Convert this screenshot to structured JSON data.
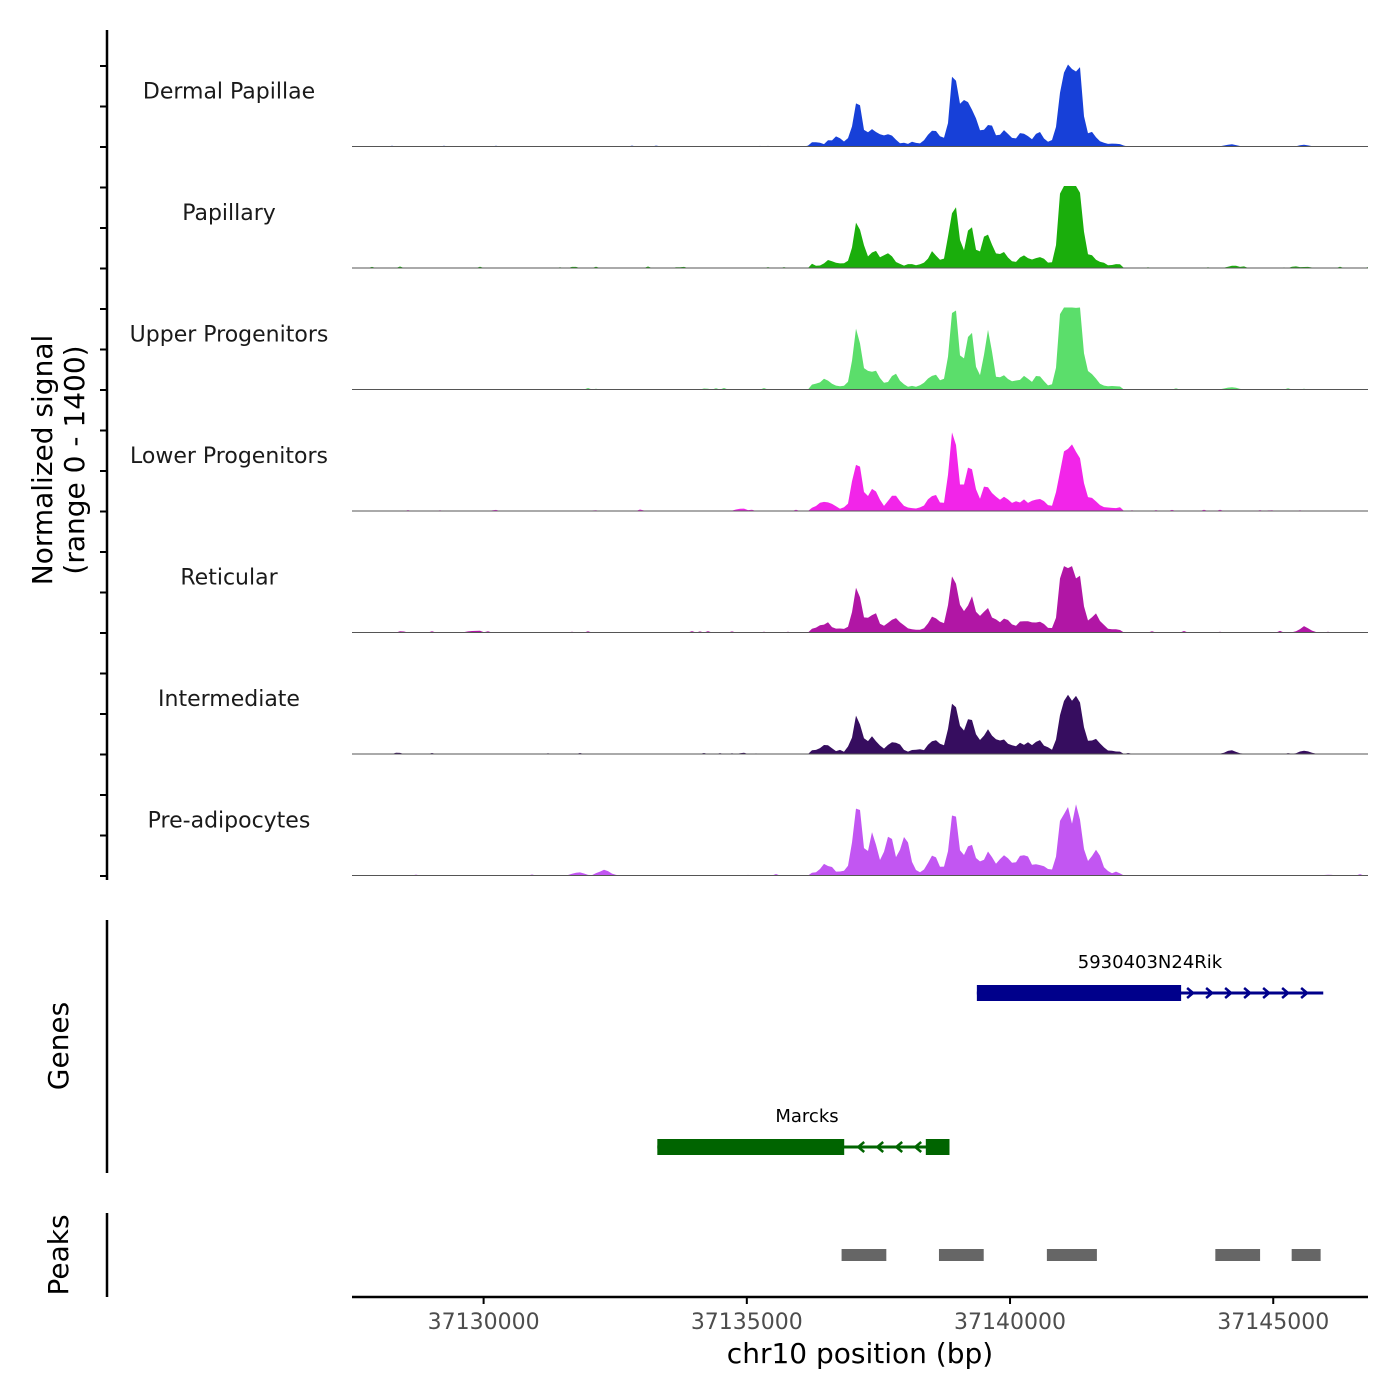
{
  "chart_data": {
    "type": "area",
    "title": "",
    "ylabel_line1": "Normalized signal",
    "ylabel_line2": "(range 0 - 1400)",
    "ylim": [
      0,
      1400
    ],
    "xlabel": "chr10 position (bp)",
    "xlim": [
      37127500,
      37146800
    ],
    "xticks": [
      37130000,
      37135000,
      37140000,
      37145000
    ],
    "xtick_labels": [
      "37130000",
      "37135000",
      "37140000",
      "37145000"
    ],
    "tracks": [
      {
        "name": "Dermal Papillae",
        "color": "#1740D8",
        "peaks": [
          [
            37137100,
            800
          ],
          [
            37137400,
            260
          ],
          [
            37137700,
            150
          ],
          [
            37138550,
            220
          ],
          [
            37138930,
            1060
          ],
          [
            37139100,
            500
          ],
          [
            37139280,
            420
          ],
          [
            37139600,
            300
          ],
          [
            37139900,
            200
          ],
          [
            37140250,
            160
          ],
          [
            37140550,
            170
          ],
          [
            37141000,
            1200
          ],
          [
            37141300,
            1230
          ],
          [
            37141150,
            900
          ],
          [
            37141550,
            160
          ],
          [
            37136700,
            90
          ],
          [
            37144200,
            40
          ],
          [
            37145600,
            20
          ]
        ]
      },
      {
        "name": "Papillary",
        "color": "#1AAE0C",
        "peaks": [
          [
            37137100,
            840
          ],
          [
            37137400,
            250
          ],
          [
            37137700,
            170
          ],
          [
            37138550,
            210
          ],
          [
            37138930,
            1070
          ],
          [
            37139240,
            660
          ],
          [
            37139580,
            560
          ],
          [
            37139900,
            190
          ],
          [
            37140250,
            150
          ],
          [
            37140550,
            160
          ],
          [
            37141000,
            1270
          ],
          [
            37141300,
            1250
          ],
          [
            37141150,
            980
          ],
          [
            37141550,
            140
          ],
          [
            37136600,
            100
          ],
          [
            37144250,
            40
          ],
          [
            37145600,
            20
          ]
        ]
      },
      {
        "name": "Upper Progenitors",
        "color": "#5BDE6B",
        "peaks": [
          [
            37137100,
            1020
          ],
          [
            37137400,
            300
          ],
          [
            37137800,
            200
          ],
          [
            37138550,
            230
          ],
          [
            37138930,
            1330
          ],
          [
            37139230,
            1050
          ],
          [
            37139580,
            860
          ],
          [
            37139900,
            180
          ],
          [
            37140250,
            150
          ],
          [
            37140550,
            160
          ],
          [
            37141000,
            1330
          ],
          [
            37141300,
            1320
          ],
          [
            37141150,
            1050
          ],
          [
            37141550,
            160
          ],
          [
            37136500,
            120
          ],
          [
            37144200,
            40
          ]
        ]
      },
      {
        "name": "Lower Progenitors",
        "color": "#F225E9",
        "peaks": [
          [
            37137100,
            900
          ],
          [
            37137400,
            280
          ],
          [
            37137800,
            220
          ],
          [
            37138550,
            240
          ],
          [
            37138930,
            1230
          ],
          [
            37139240,
            820
          ],
          [
            37139580,
            410
          ],
          [
            37139900,
            190
          ],
          [
            37140250,
            150
          ],
          [
            37140550,
            170
          ],
          [
            37141000,
            850
          ],
          [
            37141300,
            820
          ],
          [
            37141150,
            690
          ],
          [
            37141550,
            150
          ],
          [
            37136500,
            110
          ],
          [
            37134900,
            40
          ]
        ]
      },
      {
        "name": "Reticular",
        "color": "#B116A5",
        "peaks": [
          [
            37137100,
            660
          ],
          [
            37137400,
            260
          ],
          [
            37137800,
            200
          ],
          [
            37138550,
            190
          ],
          [
            37138930,
            900
          ],
          [
            37139240,
            520
          ],
          [
            37139580,
            330
          ],
          [
            37139900,
            180
          ],
          [
            37140250,
            140
          ],
          [
            37140550,
            160
          ],
          [
            37141000,
            900
          ],
          [
            37141300,
            820
          ],
          [
            37141150,
            700
          ],
          [
            37141620,
            250
          ],
          [
            37136500,
            110
          ],
          [
            37145600,
            80
          ],
          [
            37129800,
            30
          ]
        ]
      },
      {
        "name": "Intermediate",
        "color": "#360D5F",
        "peaks": [
          [
            37137100,
            620
          ],
          [
            37137400,
            220
          ],
          [
            37137800,
            170
          ],
          [
            37138550,
            180
          ],
          [
            37138930,
            890
          ],
          [
            37139240,
            540
          ],
          [
            37139580,
            380
          ],
          [
            37139900,
            190
          ],
          [
            37140250,
            140
          ],
          [
            37140550,
            160
          ],
          [
            37141000,
            820
          ],
          [
            37141300,
            960
          ],
          [
            37141150,
            700
          ],
          [
            37141620,
            230
          ],
          [
            37136500,
            90
          ],
          [
            37144200,
            60
          ],
          [
            37145600,
            60
          ]
        ]
      },
      {
        "name": "Pre-adipocytes",
        "color": "#C256F2",
        "peaks": [
          [
            37137100,
            1120
          ],
          [
            37137400,
            720
          ],
          [
            37137700,
            650
          ],
          [
            37138000,
            520
          ],
          [
            37138550,
            260
          ],
          [
            37138930,
            1140
          ],
          [
            37139240,
            430
          ],
          [
            37139580,
            320
          ],
          [
            37139900,
            310
          ],
          [
            37140250,
            330
          ],
          [
            37140550,
            170
          ],
          [
            37141000,
            950
          ],
          [
            37141300,
            830
          ],
          [
            37141150,
            700
          ],
          [
            37141620,
            380
          ],
          [
            37136500,
            150
          ],
          [
            37132300,
            90
          ],
          [
            37131800,
            60
          ]
        ]
      }
    ],
    "genes_label": "Genes",
    "genes": [
      {
        "name": "5930403N24Rik",
        "color": "#00008B",
        "strand": "+",
        "start": 37139370,
        "end": 37145950,
        "exons": [
          [
            37139370,
            37143250
          ]
        ]
      },
      {
        "name": "Marcks",
        "color": "#006400",
        "strand": "-",
        "start": 37133300,
        "end": 37138850,
        "exons": [
          [
            37133300,
            37136850
          ],
          [
            37138400,
            37138850
          ]
        ]
      }
    ],
    "peaks_label": "Peaks",
    "peak_regions": [
      [
        37136800,
        37137650
      ],
      [
        37138650,
        37139500
      ],
      [
        37140700,
        37141650
      ],
      [
        37143900,
        37144750
      ],
      [
        37145350,
        37145900
      ]
    ],
    "peak_color": "#666666"
  }
}
